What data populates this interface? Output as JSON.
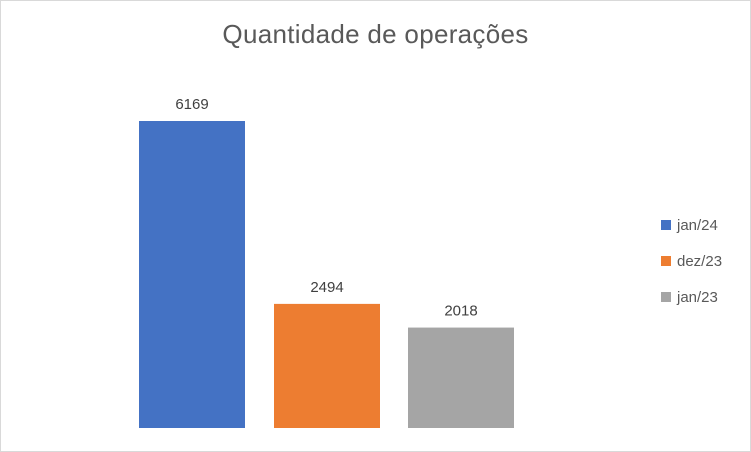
{
  "chart_data": {
    "type": "bar",
    "title": "Quantidade de operações",
    "categories": [
      "jan/24",
      "dez/23",
      "jan/23"
    ],
    "values": [
      6169,
      2494,
      2018
    ],
    "colors": [
      "#4472C4",
      "#ED7D31",
      "#A5A5A5"
    ],
    "data_labels": [
      "6169",
      "2494",
      "2018"
    ],
    "legend": {
      "placement": "right",
      "entries": [
        "jan/24",
        "dez/23",
        "jan/23"
      ]
    },
    "ylim": [
      0,
      6169
    ],
    "grid": false,
    "xlabel": "",
    "ylabel": ""
  }
}
